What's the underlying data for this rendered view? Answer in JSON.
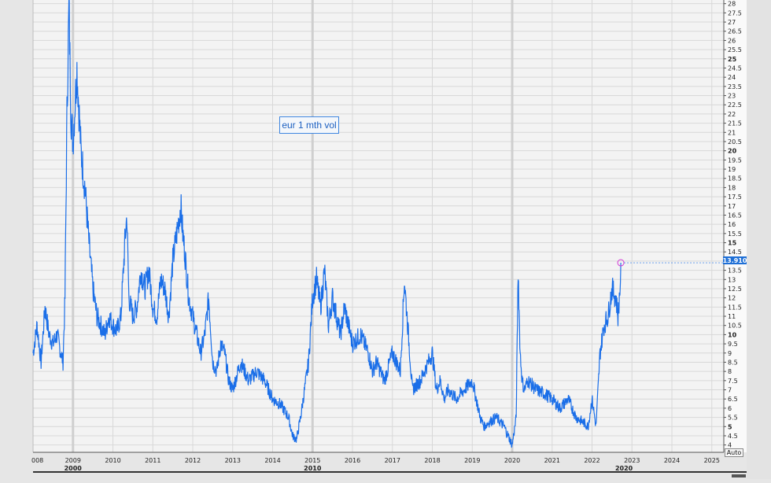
{
  "chart_data": {
    "type": "line",
    "title": "",
    "xlabel": "",
    "ylabel": "",
    "legend": {
      "text": "eur 1 mth vol",
      "placement": "top-left"
    },
    "last_value_label": "13.910",
    "auto_label": "Auto",
    "colors": {
      "line": "#1a6ee8",
      "grid": "#d8d8d8",
      "plot_bg": "#f3f3f3",
      "badge": "#1e6fd6",
      "marker": "#d43ad4"
    },
    "xlim": [
      2008.0,
      2025.3
    ],
    "ylim": [
      3.6,
      28.2
    ],
    "grid": true,
    "x_ticks": [
      "008",
      "2009",
      "2010",
      "2011",
      "2012",
      "2013",
      "2014",
      "2015",
      "2016",
      "2017",
      "2018",
      "2019",
      "2020",
      "2021",
      "2022",
      "2023",
      "2024",
      "2025"
    ],
    "x_tick_values": [
      2008,
      2009,
      2010,
      2011,
      2012,
      2013,
      2014,
      2015,
      2016,
      2017,
      2018,
      2019,
      2020,
      2021,
      2022,
      2023,
      2024,
      2025
    ],
    "decade_labels": [
      {
        "label": "2000",
        "at": 2009
      },
      {
        "label": "2010",
        "at": 2015
      },
      {
        "label": "2020",
        "at": 2022.8
      }
    ],
    "y_ticks": [
      "4",
      "4.5",
      "5",
      "5.5",
      "6",
      "6.5",
      "7",
      "7.5",
      "8",
      "8.5",
      "9",
      "9.5",
      "10",
      "10.5",
      "11",
      "11.5",
      "12",
      "12.5",
      "13",
      "13.5",
      "14",
      "14.5",
      "15",
      "15.5",
      "16",
      "16.5",
      "17",
      "17.5",
      "18",
      "18.5",
      "19",
      "19.5",
      "20",
      "20.5",
      "21",
      "21.5",
      "22",
      "22.5",
      "23",
      "23.5",
      "24",
      "24.5",
      "25",
      "25.5",
      "26",
      "26.5",
      "27",
      "27.5",
      "28"
    ],
    "y_bold_ticks": [
      "5",
      "10",
      "15",
      "20",
      "25"
    ],
    "series": [
      {
        "x": [
          2008.0,
          2008.1,
          2008.2,
          2008.3,
          2008.4,
          2008.5,
          2008.6,
          2008.7,
          2008.75,
          2008.8,
          2008.85,
          2008.9,
          2008.95,
          2009.0,
          2009.1,
          2009.2,
          2009.3,
          2009.4,
          2009.5,
          2009.6,
          2009.7,
          2009.8,
          2009.9,
          2010.0,
          2010.1,
          2010.2,
          2010.3,
          2010.35,
          2010.4,
          2010.5,
          2010.6,
          2010.7,
          2010.8,
          2010.9,
          2011.0,
          2011.1,
          2011.2,
          2011.3,
          2011.4,
          2011.5,
          2011.6,
          2011.7,
          2011.75,
          2011.8,
          2011.9,
          2012.0,
          2012.1,
          2012.2,
          2012.3,
          2012.4,
          2012.5,
          2012.6,
          2012.7,
          2012.8,
          2012.9,
          2013.0,
          2013.2,
          2013.4,
          2013.6,
          2013.8,
          2014.0,
          2014.2,
          2014.4,
          2014.5,
          2014.6,
          2014.7,
          2014.8,
          2014.9,
          2015.0,
          2015.1,
          2015.2,
          2015.3,
          2015.4,
          2015.5,
          2015.6,
          2015.7,
          2015.8,
          2016.0,
          2016.2,
          2016.4,
          2016.5,
          2016.6,
          2016.8,
          2017.0,
          2017.2,
          2017.3,
          2017.5,
          2017.7,
          2017.9,
          2018.0,
          2018.1,
          2018.2,
          2018.3,
          2018.4,
          2018.6,
          2018.8,
          2019.0,
          2019.1,
          2019.2,
          2019.3,
          2019.4,
          2019.6,
          2019.8,
          2019.9,
          2020.0,
          2020.1,
          2020.15,
          2020.2,
          2020.25,
          2020.3,
          2020.4,
          2020.6,
          2020.8,
          2021.0,
          2021.2,
          2021.4,
          2021.6,
          2021.8,
          2021.9,
          2022.0,
          2022.1,
          2022.15,
          2022.2,
          2022.3,
          2022.4,
          2022.5,
          2022.6,
          2022.65,
          2022.7,
          2022.72
        ],
        "y": [
          9.0,
          10.5,
          8.5,
          11.5,
          10.0,
          9.5,
          10.0,
          9.0,
          8.5,
          12.0,
          22.0,
          28.0,
          22.0,
          20.5,
          24.5,
          20.0,
          18.0,
          15.0,
          12.5,
          11.0,
          10.5,
          10.0,
          11.0,
          10.5,
          10.2,
          11.0,
          15.0,
          16.5,
          12.0,
          11.0,
          11.5,
          13.5,
          12.5,
          13.5,
          11.5,
          11.0,
          13.0,
          12.5,
          11.0,
          14.0,
          15.5,
          17.0,
          15.5,
          14.5,
          12.0,
          11.0,
          10.0,
          9.0,
          10.0,
          12.0,
          8.5,
          8.0,
          9.5,
          9.0,
          7.5,
          7.0,
          8.5,
          7.5,
          8.0,
          7.5,
          6.5,
          6.2,
          5.5,
          4.5,
          4.3,
          5.5,
          7.0,
          8.5,
          12.0,
          13.0,
          11.5,
          13.5,
          10.5,
          12.0,
          11.0,
          10.0,
          11.5,
          9.5,
          10.0,
          9.0,
          8.0,
          8.5,
          7.5,
          9.0,
          8.0,
          13.0,
          7.0,
          7.5,
          8.5,
          9.0,
          7.0,
          7.5,
          6.5,
          7.0,
          6.5,
          7.0,
          7.5,
          6.5,
          5.5,
          5.0,
          5.2,
          5.5,
          5.0,
          4.5,
          4.0,
          5.5,
          13.5,
          9.0,
          7.5,
          7.0,
          7.5,
          7.0,
          6.8,
          6.5,
          6.0,
          6.5,
          5.5,
          5.2,
          5.0,
          6.5,
          5.0,
          7.0,
          9.0,
          10.5,
          11.0,
          12.5,
          12.0,
          11.0,
          12.5,
          13.91
        ]
      }
    ]
  }
}
